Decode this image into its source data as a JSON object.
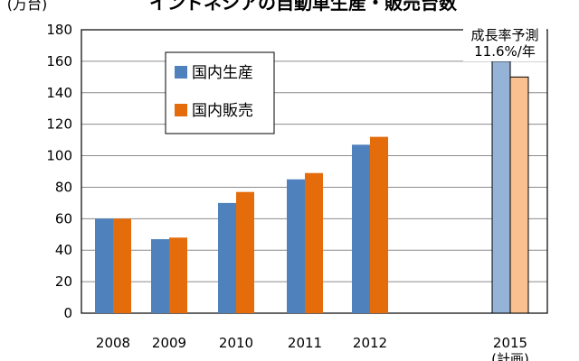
{
  "chart_data": {
    "type": "bar",
    "title": "インドネシアの自動車生産・販売台数",
    "ylabel": "(万台)",
    "xlabel": "",
    "ylim": [
      0,
      180
    ],
    "yticks": [
      0,
      20,
      40,
      60,
      80,
      100,
      120,
      140,
      160,
      180
    ],
    "grid": true,
    "legend_position": "top-left",
    "categories": [
      "2008",
      "2009",
      "2010",
      "2011",
      "2012",
      "2015"
    ],
    "category_notes": [
      "",
      "",
      "",
      "",
      "",
      "(計画)"
    ],
    "series": [
      {
        "name": "国内生産",
        "color": "#4f81bd",
        "forecast_color": "#95b3d7",
        "values": [
          60,
          47,
          70,
          85,
          107,
          160
        ]
      },
      {
        "name": "国内販売",
        "color": "#e46c0a",
        "forecast_color": "#fac090",
        "values": [
          60,
          48,
          77,
          89,
          112,
          150
        ]
      }
    ],
    "annotation": {
      "line1": "成長率予測",
      "line2": "11.6%/年"
    }
  }
}
